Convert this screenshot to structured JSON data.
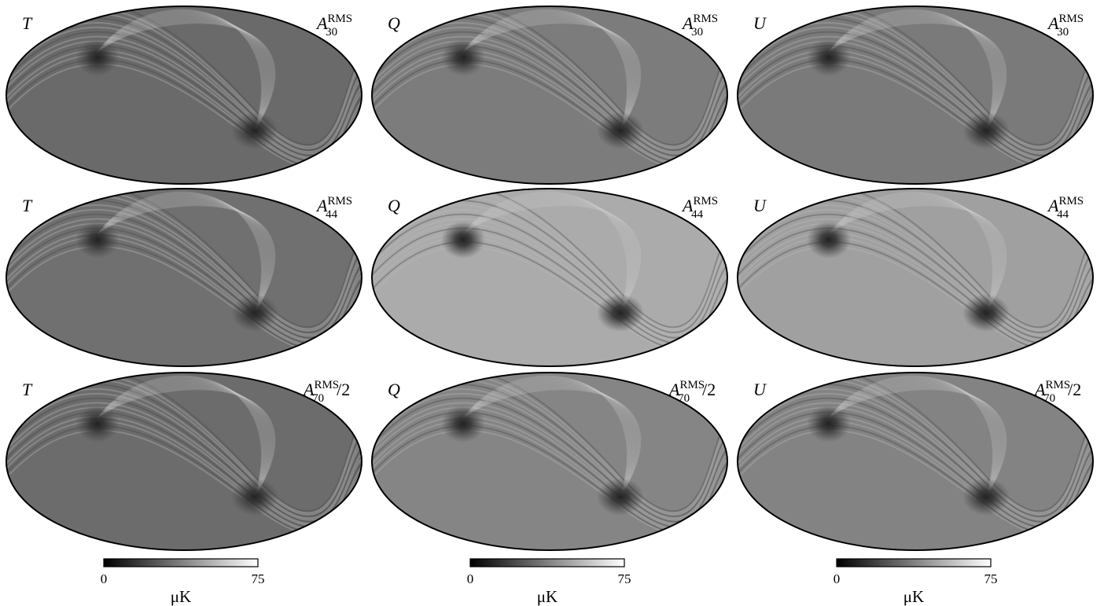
{
  "panels": [
    {
      "stokes": "T",
      "symbol": "A",
      "subscript": "30",
      "superscript": "RMS"
    },
    {
      "stokes": "Q",
      "symbol": "A",
      "subscript": "30",
      "superscript": "RMS"
    },
    {
      "stokes": "U",
      "symbol": "A",
      "subscript": "30",
      "superscript": "RMS"
    },
    {
      "stokes": "T",
      "symbol": "A",
      "subscript": "44",
      "superscript": "RMS"
    },
    {
      "stokes": "Q",
      "symbol": "A",
      "subscript": "44",
      "superscript": "RMS"
    },
    {
      "stokes": "U",
      "symbol": "A",
      "subscript": "44",
      "superscript": "RMS"
    },
    {
      "stokes": "T",
      "symbol": "A",
      "subscript": "70",
      "superscript": "RMS",
      "suffix": "/2"
    },
    {
      "stokes": "Q",
      "symbol": "A",
      "subscript": "70",
      "superscript": "RMS",
      "suffix": "/2"
    },
    {
      "stokes": "U",
      "symbol": "A",
      "subscript": "70",
      "superscript": "RMS",
      "suffix": "/2"
    }
  ],
  "colorbars": [
    {
      "min": "0",
      "max": "75",
      "unit": "μK"
    },
    {
      "min": "0",
      "max": "75",
      "unit": "μK"
    },
    {
      "min": "0",
      "max": "75",
      "unit": "μK"
    }
  ]
}
